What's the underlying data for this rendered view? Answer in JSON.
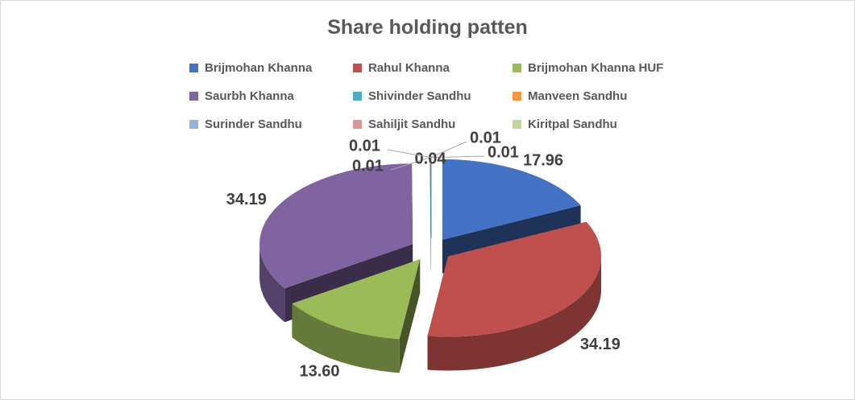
{
  "chart_data": {
    "type": "pie",
    "title": "Share holding patten",
    "legend_position": "top",
    "categories": [
      "Brijmohan Khanna",
      "Rahul Khanna",
      "Brijmohan Khanna HUF",
      "Saurbh Khanna",
      "Shivinder Sandhu",
      "Manveen Sandhu",
      "Surinder Sandhu",
      "Sahiljit Sandhu",
      "Kiritpal Sandhu"
    ],
    "values": [
      17.96,
      34.19,
      13.6,
      34.19,
      0.01,
      0.01,
      0.01,
      0.04,
      0.01
    ],
    "value_labels": [
      "17.96",
      "34.19",
      "13.60",
      "34.19",
      "0.01",
      "0.01",
      "0.01",
      "0.04",
      "0.01"
    ],
    "colors": [
      "#4472c4",
      "#c0504d",
      "#9bbb59",
      "#8064a2",
      "#4bacc6",
      "#f79646",
      "#95b3d7",
      "#d99694",
      "#c3d69b"
    ],
    "style": "3d-exploded"
  }
}
